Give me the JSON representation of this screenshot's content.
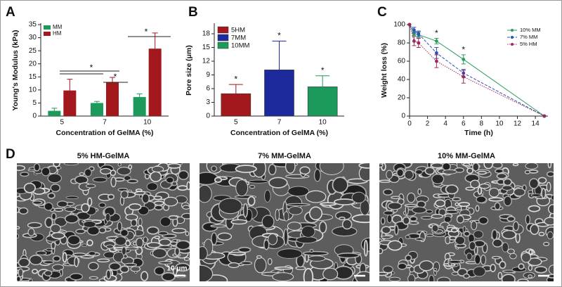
{
  "chart_data": [
    {
      "type": "bar",
      "panel": "A",
      "categories": [
        "5",
        "7",
        "10"
      ],
      "series": [
        {
          "name": "MM",
          "color": "#1b9a5c",
          "values": [
            2,
            5,
            7.3
          ],
          "errors": [
            1,
            0.6,
            1.2
          ]
        },
        {
          "name": "HM",
          "color": "#a3181c",
          "values": [
            9.8,
            13,
            25.8
          ],
          "errors": [
            4.3,
            1.8,
            6
          ]
        }
      ],
      "ylim": [
        0,
        35
      ],
      "yticks": [
        0,
        5,
        10,
        15,
        20,
        25,
        30,
        35
      ],
      "xlabel": "Concentration of GelMA (%)",
      "ylabel": "Young's Modulus (kPa)",
      "annotations": [
        "*",
        "*",
        "*"
      ],
      "legend": "top-left"
    },
    {
      "type": "bar",
      "panel": "B",
      "categories": [
        "5",
        "7",
        "10"
      ],
      "values": [
        4.9,
        10.1,
        6.4
      ],
      "errors": [
        2,
        6.3,
        2.4
      ],
      "colors": [
        "#a3181c",
        "#1c2a9c",
        "#1b9a5c"
      ],
      "legend_labels": [
        "5HM",
        "7MM",
        "10MM"
      ],
      "ylim": [
        0,
        20
      ],
      "yticks": [
        0,
        3,
        6,
        9,
        12,
        15,
        18
      ],
      "xlabel": "Concentration of GelMA (%)",
      "ylabel": "Pore size (μm)",
      "annotations": [
        "*",
        "*",
        "*"
      ],
      "legend": "top-left"
    },
    {
      "type": "line",
      "panel": "C",
      "x": [
        0,
        0.5,
        1,
        3,
        6,
        15
      ],
      "series": [
        {
          "name": "10% MM",
          "color": "#2a9d5c",
          "linestyle": "solid",
          "values": [
            100,
            90,
            89,
            82,
            62,
            0
          ],
          "errors": [
            0,
            2,
            3,
            3,
            5,
            0
          ]
        },
        {
          "name": "7% MM",
          "color": "#2b4fbf",
          "linestyle": "dashed",
          "values": [
            100,
            94,
            90,
            69,
            47,
            0
          ],
          "errors": [
            0,
            3,
            3,
            6,
            4,
            0
          ]
        },
        {
          "name": "5% HM",
          "color": "#a0285a",
          "linestyle": "dotted",
          "values": [
            100,
            82,
            80,
            60,
            43,
            0
          ],
          "errors": [
            0,
            5,
            5,
            7,
            7,
            0
          ]
        }
      ],
      "xlim": [
        0,
        15.4
      ],
      "xticks": [
        0,
        2,
        4,
        6,
        8,
        10,
        12,
        14
      ],
      "ylim": [
        0,
        100
      ],
      "yticks": [
        0,
        20,
        40,
        60,
        80,
        100
      ],
      "xlabel": "Time (h)",
      "ylabel": "Weight loss (%)",
      "annotations": [
        "*",
        "*"
      ],
      "legend": "top-right"
    }
  ],
  "panel_d": {
    "label": "D",
    "images": [
      {
        "caption": "5% HM-GelMA",
        "scale_bar": "10 μm"
      },
      {
        "caption": "7% MM-GelMA"
      },
      {
        "caption": "10% MM-GelMA"
      }
    ]
  }
}
